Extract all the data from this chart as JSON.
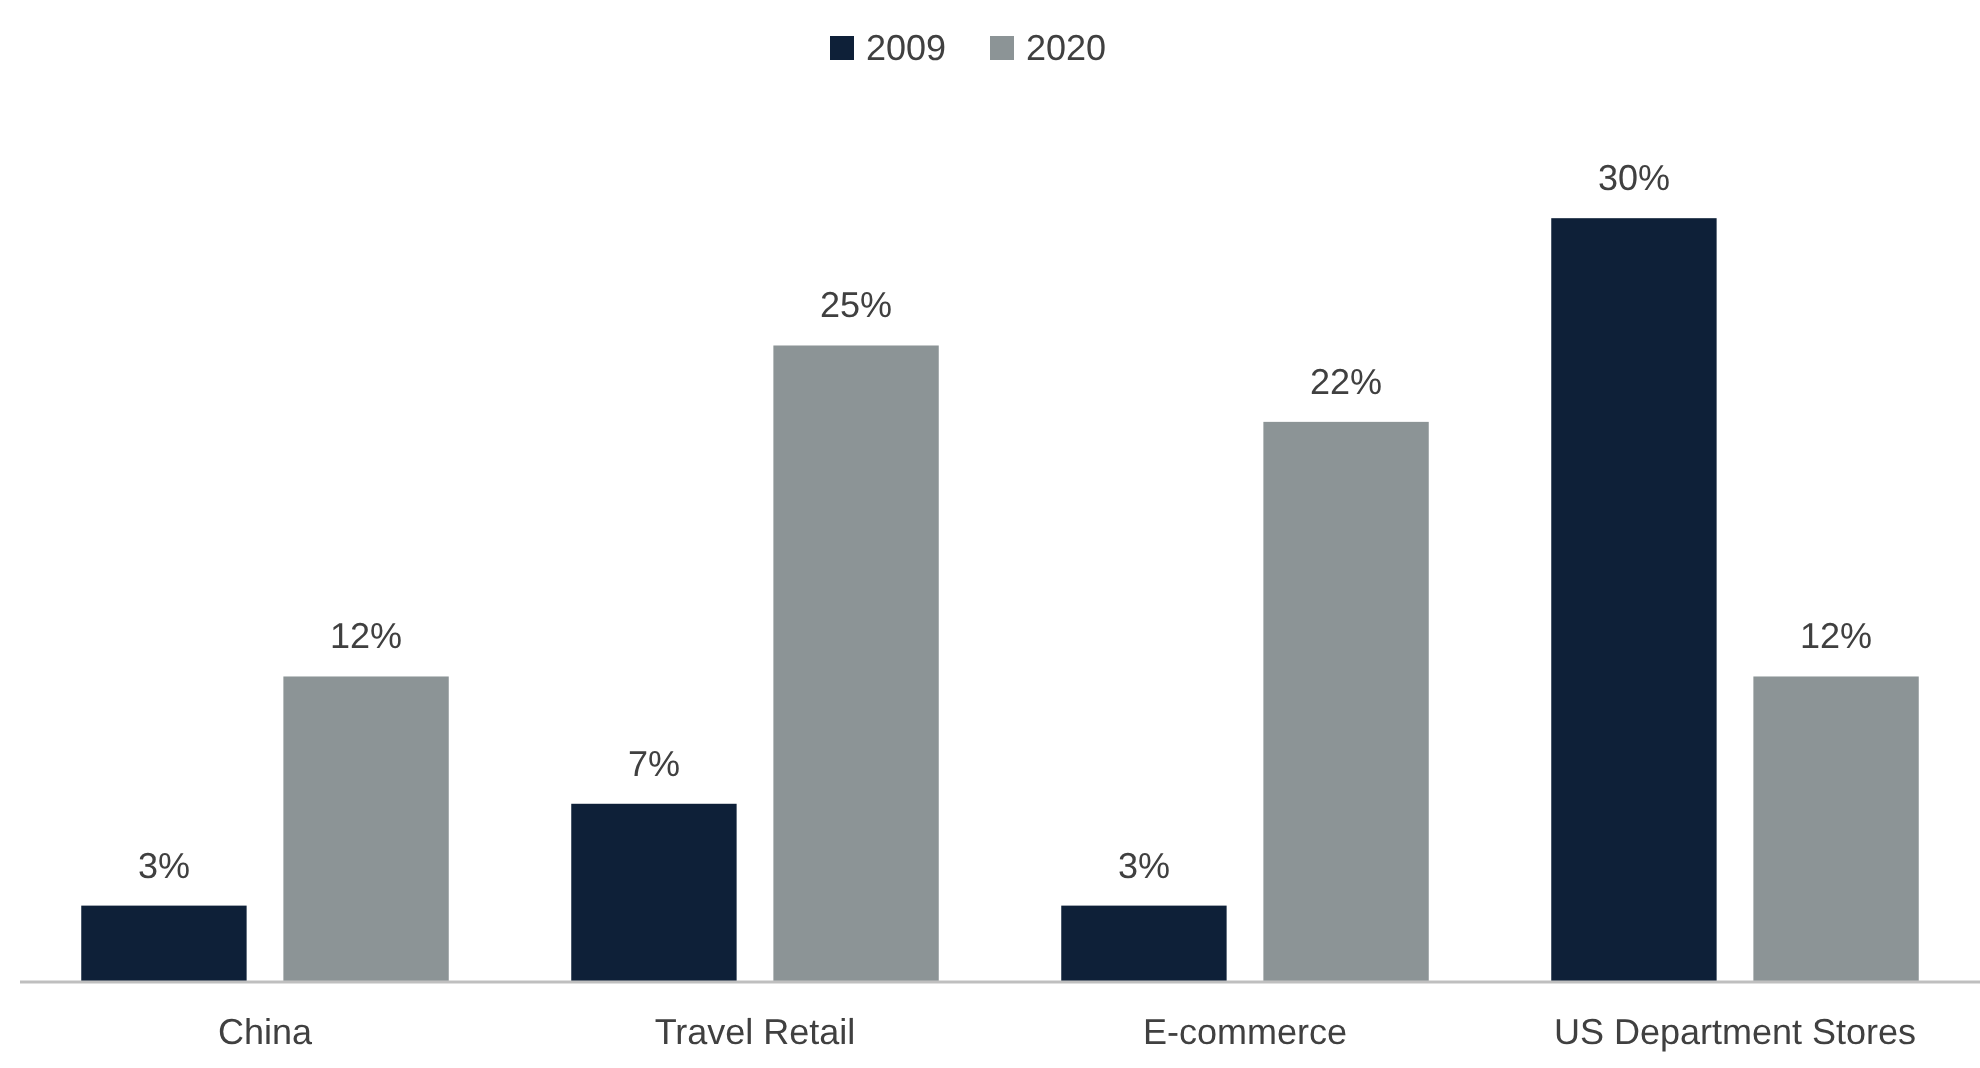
{
  "chart_data": {
    "type": "bar",
    "categories": [
      "China",
      "Travel Retail",
      "E-commerce",
      "US Department Stores"
    ],
    "series": [
      {
        "name": "2009",
        "color": "#0e2038",
        "values": [
          3,
          7,
          3,
          30
        ],
        "value_labels": [
          "3%",
          "7%",
          "3%",
          "30%"
        ]
      },
      {
        "name": "2020",
        "color": "#8c9496",
        "values": [
          12,
          25,
          22,
          12
        ],
        "value_labels": [
          "12%",
          "25%",
          "22%",
          "12%"
        ]
      }
    ],
    "legend": "top",
    "grid": false
  }
}
